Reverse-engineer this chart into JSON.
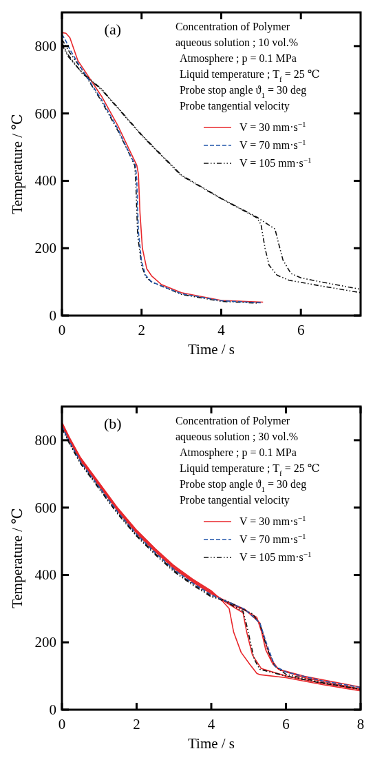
{
  "chart_data": [
    {
      "type": "line",
      "xlabel": "Time   /   s",
      "ylabel": "Temperature   /   ℃",
      "xlim": [
        0,
        7.5
      ],
      "ylim": [
        0,
        900
      ],
      "xticks": [
        0,
        2,
        4,
        6
      ],
      "yticks": [
        0,
        200,
        400,
        600,
        800
      ],
      "legend": "top right",
      "annotations": [
        "(a)",
        "Concentration of Polymer",
        "aqueous solution ; 10 vol.%",
        "Atmosphere ; p = 0.1 MPa",
        "Liquid temperature ; T$_{f}$ = 25 ℃",
        "Probe stop angle ϑ$_{1}$ = 30 deg",
        "Probe tangential velocity"
      ],
      "series": [
        {
          "name": "V = 30 mm·s$^{−1}$",
          "color": "#e8272b",
          "line_style": "solid",
          "x": [
            0,
            0.1,
            0.2,
            0.4,
            1,
            1.4,
            1.75,
            1.88,
            1.92,
            1.96,
            2.02,
            2.13,
            2.25,
            2.5,
            3,
            4,
            5.05
          ],
          "values": [
            840,
            838,
            825,
            757,
            650,
            565,
            478,
            446,
            420,
            305,
            200,
            139,
            118,
            92,
            68,
            45,
            40
          ]
        },
        {
          "name": "V = 70 mm·s$^{−1}$",
          "color": "#2255aa",
          "line_style": "dashed",
          "x": [
            0,
            0.1,
            0.2,
            0.4,
            1,
            1.4,
            1.7,
            1.85,
            1.88,
            1.92,
            2,
            2.1,
            2.25,
            2.5,
            3,
            4,
            5
          ],
          "values": [
            835,
            815,
            790,
            750,
            640,
            555,
            480,
            445,
            400,
            250,
            160,
            120,
            100,
            88,
            65,
            44,
            38
          ]
        },
        {
          "name": "V = 105 mm·s$^{−1}$",
          "color": "#111111",
          "line_style": "dashdot",
          "x": [
            0,
            0.2,
            0.5,
            1,
            1.4,
            1.7,
            1.83,
            1.86,
            1.9,
            2,
            2.1,
            2.25,
            3,
            4,
            4.9
          ],
          "values": [
            820,
            780,
            730,
            635,
            550,
            478,
            445,
            380,
            240,
            150,
            115,
            100,
            63,
            42,
            37
          ]
        },
        {
          "color": "#111111",
          "line_style": "dashdot",
          "x": [
            0,
            0.15,
            0.5,
            1,
            2,
            3,
            4,
            4.9,
            5,
            5.1,
            5.2,
            5.4,
            5.7,
            6.5,
            7.5
          ],
          "values": [
            810,
            775,
            720,
            670,
            535,
            415,
            347,
            290,
            270,
            200,
            150,
            120,
            105,
            88,
            68
          ]
        },
        {
          "color": "#111111",
          "line_style": "dashdot",
          "x": [
            0,
            0.15,
            0.5,
            1,
            2,
            3,
            4,
            4.9,
            5.05,
            5.35,
            5.45,
            5.55,
            5.75,
            6,
            6.5,
            7.5
          ],
          "values": [
            805,
            770,
            722,
            672,
            537,
            417,
            348,
            292,
            280,
            257,
            210,
            165,
            125,
            112,
            100,
            78
          ]
        }
      ]
    },
    {
      "type": "line",
      "xlabel": "Time   /   s",
      "ylabel": "Temperature   /   ℃",
      "xlim": [
        0,
        8
      ],
      "ylim": [
        0,
        900
      ],
      "xticks": [
        0,
        2,
        4,
        6,
        8
      ],
      "yticks": [
        0,
        200,
        400,
        600,
        800
      ],
      "legend": "top right",
      "annotations": [
        "(b)",
        "Concentration of Polymer",
        "aqueous solution ; 30 vol.%",
        "Atmosphere ; p = 0.1 MPa",
        "Liquid temperature ; T$_{f}$ = 25 ℃",
        "Probe stop angle  ϑ$_{1}$ = 30 deg",
        "Probe tangential velocity"
      ],
      "series": [
        {
          "name": "V = 30 mm·s$^{−1}$",
          "color": "#e8272b",
          "line_style": "solid",
          "x": [
            0,
            0.2,
            0.5,
            1,
            1.5,
            2,
            2.5,
            3,
            3.5,
            4,
            4.3,
            4.48,
            4.6,
            4.8,
            5.03,
            5.22,
            5.3,
            6,
            7,
            8
          ],
          "values": [
            853,
            808,
            748,
            673,
            598,
            533,
            478,
            428,
            388,
            353,
            322,
            300,
            230,
            170,
            135,
            108,
            104,
            95,
            74,
            56
          ]
        },
        {
          "name": "V = 70 mm·s$^{−1}$",
          "color": "#2255aa",
          "line_style": "dashed",
          "x": [
            0,
            0.2,
            0.5,
            1,
            1.5,
            2,
            2.5,
            3,
            3.5,
            4,
            4.4,
            4.9,
            5.3,
            5.5,
            5.7,
            6,
            7,
            8
          ],
          "values": [
            841,
            796,
            736,
            661,
            586,
            521,
            466,
            416,
            376,
            341,
            322,
            298,
            258,
            190,
            130,
            112,
            85,
            66
          ]
        },
        {
          "name": "V = 105 mm·s$^{−1}$",
          "color": "#111111",
          "line_style": "dashdot",
          "x": [
            0,
            0.2,
            0.5,
            1,
            1.5,
            2,
            2.5,
            3,
            3.5,
            4,
            4.4,
            4.85,
            4.95,
            5.05,
            5.15,
            5.3,
            6,
            7,
            8
          ],
          "values": [
            838,
            793,
            733,
            658,
            583,
            518,
            463,
            413,
            373,
            338,
            320,
            292,
            250,
            200,
            150,
            120,
            100,
            78,
            62
          ]
        },
        {
          "color": "#e8272b",
          "line_style": "solid",
          "x": [
            0,
            0.2,
            0.5,
            1,
            1.5,
            2,
            2.5,
            3,
            3.5,
            4,
            4.4,
            4.85,
            4.95,
            5.1,
            5.34,
            6,
            7,
            8
          ],
          "values": [
            850,
            805,
            745,
            670,
            595,
            530,
            475,
            425,
            385,
            350,
            318,
            288,
            230,
            163,
            122,
            100,
            78,
            60
          ]
        },
        {
          "color": "#e8272b",
          "line_style": "solid",
          "x": [
            0,
            0.2,
            0.5,
            1,
            1.5,
            2,
            2.5,
            3,
            3.5,
            4,
            4.4,
            4.9,
            5.22,
            5.35,
            5.46,
            5.65,
            5.83,
            6.5,
            8
          ],
          "values": [
            847,
            802,
            742,
            667,
            592,
            527,
            472,
            422,
            382,
            347,
            320,
            295,
            274,
            230,
            177,
            135,
            118,
            95,
            61
          ]
        },
        {
          "color": "#e8272b",
          "line_style": "solid",
          "x": [
            0,
            0.2,
            0.5,
            1,
            1.5,
            2,
            2.5,
            3,
            3.5,
            4,
            4.4,
            4.9,
            5.3,
            5.45,
            5.6,
            5.8,
            6.5,
            8
          ],
          "values": [
            844,
            799,
            739,
            664,
            589,
            524,
            469,
            419,
            379,
            344,
            322,
            298,
            258,
            200,
            150,
            120,
            99,
            67
          ]
        },
        {
          "color": "#111111",
          "line_style": "dashdot",
          "x": [
            0,
            0.2,
            0.5,
            1,
            1.5,
            2,
            2.5,
            3,
            3.5,
            4,
            4.4,
            4.9,
            5.1,
            5.3,
            5.5,
            5.7,
            6,
            7,
            8
          ],
          "values": [
            835,
            790,
            730,
            655,
            580,
            515,
            460,
            410,
            370,
            335,
            324,
            296,
            285,
            255,
            180,
            130,
            105,
            80,
            60
          ]
        }
      ]
    }
  ]
}
